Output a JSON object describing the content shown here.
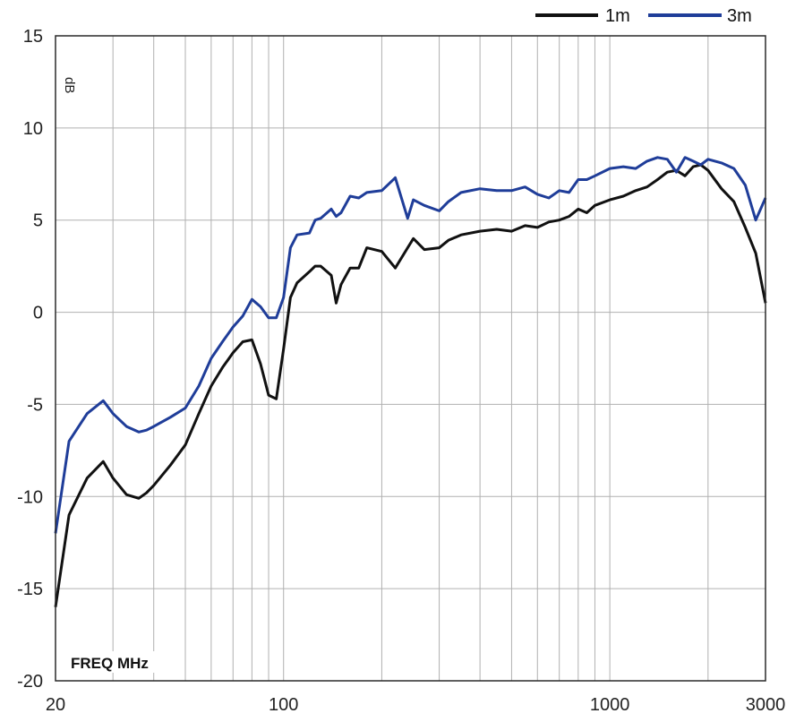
{
  "chart_data": {
    "type": "line",
    "x_scale": "log",
    "xlim": [
      20,
      3000
    ],
    "ylim": [
      -20,
      15
    ],
    "x_tick_labels": [
      "20",
      "100",
      "1000",
      "3000"
    ],
    "x_tick_values": [
      20,
      100,
      1000,
      3000
    ],
    "y_tick_values": [
      15,
      10,
      5,
      0,
      -5,
      -10,
      -15,
      -20
    ],
    "y_tick_labels": [
      "15",
      "10",
      "5",
      "0",
      "-5",
      "-10",
      "-15",
      "-20"
    ],
    "xlabel": "FREQ MHz",
    "ylabel": "dB",
    "grid": true,
    "legend_position": "top-right",
    "series": [
      {
        "name": "1m",
        "color": "#111111",
        "x": [
          20,
          22,
          25,
          28,
          30,
          33,
          36,
          38,
          40,
          45,
          50,
          55,
          60,
          65,
          70,
          75,
          80,
          85,
          90,
          95,
          100,
          105,
          110,
          120,
          125,
          130,
          140,
          145,
          150,
          160,
          170,
          180,
          200,
          220,
          240,
          250,
          270,
          300,
          320,
          350,
          400,
          450,
          500,
          550,
          600,
          650,
          700,
          750,
          800,
          850,
          900,
          1000,
          1100,
          1200,
          1300,
          1400,
          1500,
          1600,
          1700,
          1800,
          1900,
          2000,
          2200,
          2400,
          2600,
          2800,
          3000
        ],
        "y": [
          -16,
          -11,
          -9,
          -8.1,
          -9,
          -9.9,
          -10.1,
          -9.8,
          -9.4,
          -8.3,
          -7.2,
          -5.5,
          -4,
          -3,
          -2.2,
          -1.6,
          -1.5,
          -2.8,
          -4.5,
          -4.7,
          -2,
          0.8,
          1.6,
          2.2,
          2.5,
          2.5,
          2,
          0.5,
          1.5,
          2.4,
          2.4,
          3.5,
          3.3,
          2.4,
          3.5,
          4,
          3.4,
          3.5,
          3.9,
          4.2,
          4.4,
          4.5,
          4.4,
          4.7,
          4.6,
          4.9,
          5,
          5.2,
          5.6,
          5.4,
          5.8,
          6.1,
          6.3,
          6.6,
          6.8,
          7.2,
          7.6,
          7.7,
          7.4,
          7.9,
          8.0,
          7.7,
          6.7,
          6.0,
          4.6,
          3.2,
          0.5
        ]
      },
      {
        "name": "3m",
        "color": "#1f3d99",
        "x": [
          20,
          22,
          25,
          28,
          30,
          33,
          36,
          38,
          40,
          45,
          50,
          55,
          60,
          65,
          70,
          75,
          80,
          85,
          90,
          95,
          100,
          105,
          110,
          120,
          125,
          130,
          140,
          145,
          150,
          160,
          170,
          180,
          200,
          220,
          240,
          250,
          270,
          300,
          320,
          350,
          400,
          450,
          500,
          550,
          600,
          650,
          700,
          750,
          800,
          850,
          900,
          1000,
          1100,
          1200,
          1300,
          1400,
          1500,
          1600,
          1700,
          1800,
          1900,
          2000,
          2200,
          2400,
          2600,
          2800,
          3000
        ],
        "y": [
          -12,
          -7,
          -5.5,
          -4.8,
          -5.5,
          -6.2,
          -6.5,
          -6.4,
          -6.2,
          -5.7,
          -5.2,
          -4,
          -2.5,
          -1.6,
          -0.8,
          -0.2,
          0.7,
          0.3,
          -0.3,
          -0.3,
          0.8,
          3.5,
          4.2,
          4.3,
          5.0,
          5.1,
          5.6,
          5.2,
          5.4,
          6.3,
          6.2,
          6.5,
          6.6,
          7.3,
          5.1,
          6.1,
          5.8,
          5.5,
          6.0,
          6.5,
          6.7,
          6.6,
          6.6,
          6.8,
          6.4,
          6.2,
          6.6,
          6.5,
          7.2,
          7.2,
          7.4,
          7.8,
          7.9,
          7.8,
          8.2,
          8.4,
          8.3,
          7.6,
          8.4,
          8.2,
          8.0,
          8.3,
          8.1,
          7.8,
          6.9,
          5.0,
          6.2
        ]
      }
    ]
  },
  "colors": {
    "background": "#ffffff",
    "grid": "#b0b0b0",
    "frame": "#2a2a2a"
  }
}
